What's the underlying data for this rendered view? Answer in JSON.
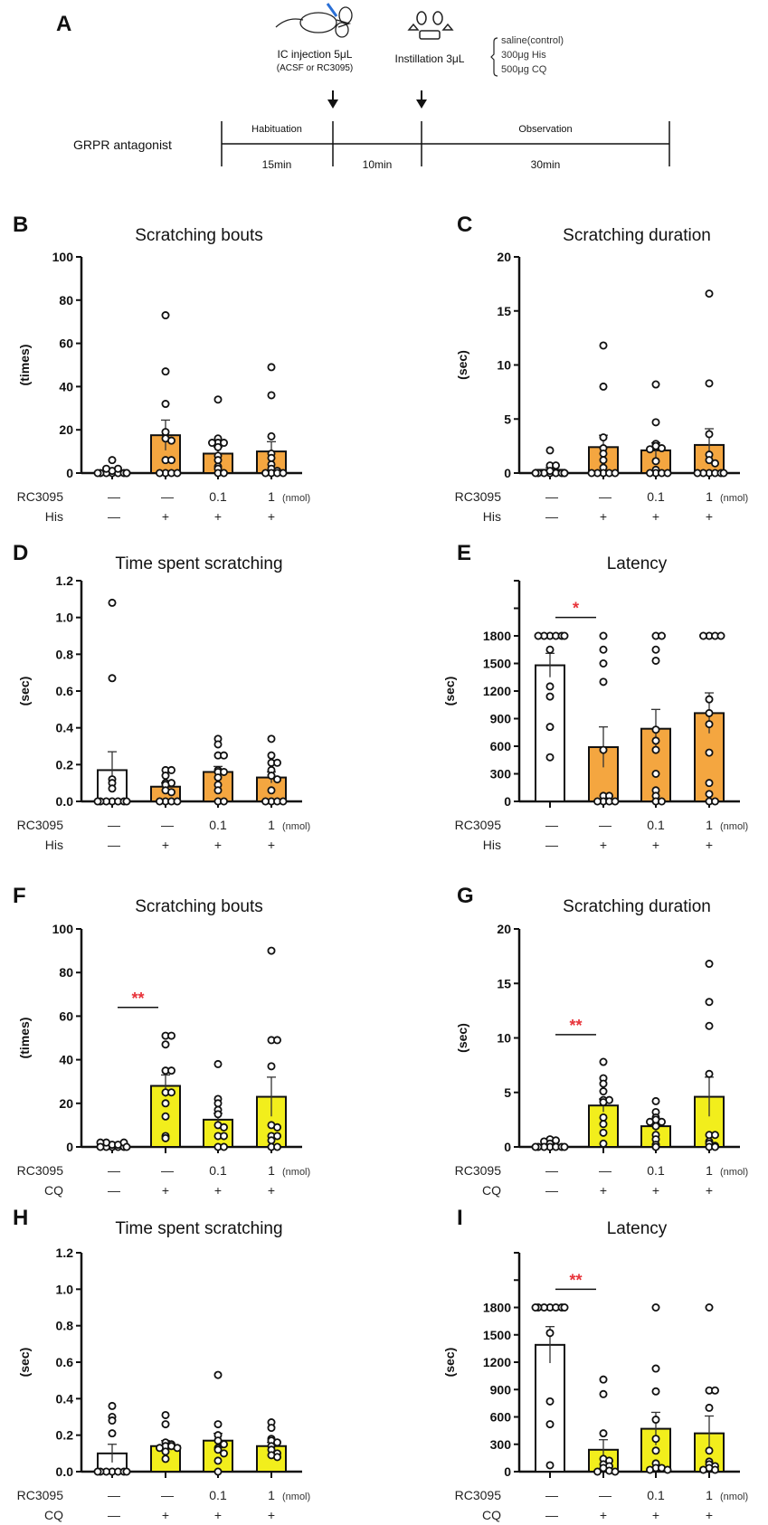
{
  "panel_a": {
    "letter": "A",
    "injection_label": "IC injection  5μL",
    "injection_sub": "(ACSF or RC3095)",
    "instillation_label": "Instillation  3μL",
    "stimuli": [
      "saline(control)",
      "300μg His",
      "500μg CQ"
    ],
    "protocol_label": "GRPR antagonist",
    "phases": [
      {
        "name": "Habituation",
        "duration": "15min"
      },
      {
        "name": "",
        "duration": "10min"
      },
      {
        "name": "Observation",
        "duration": "30min"
      }
    ]
  },
  "colors": {
    "his": "#F4A640",
    "cq": "#F2EE1C",
    "control": "#FFFFFF",
    "sig": "#E8333A",
    "ink": "#111111"
  },
  "chart_data": [
    {
      "panel": "B",
      "type": "bar",
      "title": "Scratching bouts",
      "ylabel": "(times)",
      "ylim": [
        0,
        100
      ],
      "yticks": [
        0,
        20,
        40,
        60,
        80,
        100
      ],
      "ytick_labels": [
        "0",
        "20",
        "40",
        "60",
        "80",
        "100"
      ],
      "unlabeled_ticks": [],
      "rows": [
        {
          "label": "RC3095",
          "values": [
            "—",
            "—",
            "0.1",
            "1"
          ],
          "unit": "(nmol)"
        },
        {
          "label": "His",
          "values": [
            "—",
            "+",
            "+",
            "+"
          ]
        }
      ],
      "fill": [
        "control",
        "his",
        "his",
        "his"
      ],
      "means": [
        1,
        17.5,
        9,
        10
      ],
      "sem": [
        0.5,
        7,
        3,
        4.5
      ],
      "points": [
        [
          0,
          0,
          0,
          0,
          0,
          0,
          0,
          1,
          2,
          2,
          6,
          0
        ],
        [
          73,
          47,
          32,
          19,
          16,
          15,
          6,
          6,
          0,
          0,
          0,
          0
        ],
        [
          34,
          16,
          14,
          14,
          14,
          12,
          8,
          6,
          3,
          2,
          0,
          0
        ],
        [
          49,
          36,
          17,
          9,
          7,
          4,
          2,
          1,
          0,
          0,
          0,
          0
        ]
      ],
      "significance": []
    },
    {
      "panel": "C",
      "type": "bar",
      "title": "Scratching duration",
      "ylabel": "(sec)",
      "ylim": [
        0,
        20
      ],
      "yticks": [
        0,
        5,
        10,
        15,
        20
      ],
      "ytick_labels": [
        "0",
        "5",
        "10",
        "15",
        "20"
      ],
      "unlabeled_ticks": [],
      "rows": [
        {
          "label": "RC3095",
          "values": [
            "—",
            "—",
            "0.1",
            "1"
          ],
          "unit": "(nmol)"
        },
        {
          "label": "His",
          "values": [
            "—",
            "+",
            "+",
            "+"
          ]
        }
      ],
      "fill": [
        "control",
        "his",
        "his",
        "his"
      ],
      "means": [
        0.3,
        2.4,
        2.1,
        2.6
      ],
      "sem": [
        0.2,
        1.1,
        0.7,
        1.5
      ],
      "points": [
        [
          2.1,
          0.7,
          0.7,
          0,
          0,
          0,
          0,
          0,
          0,
          0,
          0,
          0.2
        ],
        [
          11.8,
          8,
          3.3,
          2.3,
          1.8,
          1.2,
          0.5,
          0,
          0,
          0,
          0,
          0
        ],
        [
          8.2,
          4.7,
          2.7,
          2.5,
          2.3,
          2.2,
          1.1,
          0.3,
          0,
          0,
          0,
          0
        ],
        [
          16.6,
          8.3,
          3.6,
          1.7,
          1.2,
          0.9,
          0,
          0,
          0,
          0,
          0,
          0
        ]
      ],
      "significance": []
    },
    {
      "panel": "D",
      "type": "bar",
      "title": "Time spent scratching",
      "ylabel": "(sec)",
      "ylim": [
        0,
        1.2
      ],
      "yticks": [
        0,
        0.2,
        0.4,
        0.6,
        0.8,
        1.0,
        1.2
      ],
      "ytick_labels": [
        "0.0",
        "0.2",
        "0.4",
        "0.6",
        "0.8",
        "1.0",
        "1.2"
      ],
      "unlabeled_ticks": [],
      "rows": [
        {
          "label": "RC3095",
          "values": [
            "—",
            "—",
            "0.1",
            "1"
          ],
          "unit": "(nmol)"
        },
        {
          "label": "His",
          "values": [
            "—",
            "+",
            "+",
            "+"
          ]
        }
      ],
      "fill": [
        "control",
        "his",
        "his",
        "his"
      ],
      "means": [
        0.17,
        0.08,
        0.16,
        0.13
      ],
      "sem": [
        0.1,
        0.02,
        0.03,
        0.03
      ],
      "points": [
        [
          1.08,
          0.67,
          0.12,
          0.1,
          0.07,
          0,
          0,
          0,
          0,
          0,
          0,
          0
        ],
        [
          0.17,
          0.17,
          0.14,
          0.1,
          0.1,
          0.09,
          0.06,
          0.05,
          0,
          0,
          0,
          0
        ],
        [
          0.34,
          0.31,
          0.25,
          0.25,
          0.17,
          0.16,
          0.16,
          0.13,
          0.09,
          0.06,
          0,
          0
        ],
        [
          0.34,
          0.25,
          0.21,
          0.21,
          0.17,
          0.14,
          0.12,
          0.06,
          0,
          0,
          0,
          0
        ]
      ],
      "significance": []
    },
    {
      "panel": "E",
      "type": "bar",
      "title": "Latency",
      "ylabel": "(sec)",
      "ylim": [
        0,
        2400
      ],
      "yticks": [
        0,
        300,
        600,
        900,
        1200,
        1500,
        1800
      ],
      "ytick_labels": [
        "0",
        "300",
        "600",
        "900",
        "1200",
        "1500",
        "1800"
      ],
      "unlabeled_ticks": [
        2100,
        2400
      ],
      "rows": [
        {
          "label": "RC3095",
          "values": [
            "—",
            "—",
            "0.1",
            "1"
          ],
          "unit": "(nmol)"
        },
        {
          "label": "His",
          "values": [
            "—",
            "+",
            "+",
            "+"
          ]
        }
      ],
      "fill": [
        "control",
        "his",
        "his",
        "his"
      ],
      "means": [
        1480,
        590,
        790,
        960
      ],
      "sem": [
        130,
        220,
        210,
        220
      ],
      "points": [
        [
          1800,
          1800,
          1800,
          1800,
          1800,
          1800,
          1650,
          1250,
          1140,
          810,
          480
        ],
        [
          1800,
          1650,
          1500,
          1300,
          560,
          60,
          60,
          0,
          0,
          0,
          0
        ],
        [
          1800,
          1800,
          1650,
          1530,
          780,
          660,
          560,
          300,
          120,
          60,
          0,
          0
        ],
        [
          1800,
          1800,
          1800,
          1800,
          1110,
          960,
          840,
          530,
          200,
          80,
          0,
          0
        ]
      ],
      "significance": [
        {
          "from": 0,
          "to": 1,
          "y": 2000,
          "label": "*"
        }
      ]
    },
    {
      "panel": "F",
      "type": "bar",
      "title": "Scratching bouts",
      "ylabel": "(times)",
      "ylim": [
        0,
        100
      ],
      "yticks": [
        0,
        20,
        40,
        60,
        80,
        100
      ],
      "ytick_labels": [
        "0",
        "20",
        "40",
        "60",
        "80",
        "100"
      ],
      "unlabeled_ticks": [],
      "rows": [
        {
          "label": "RC3095",
          "values": [
            "—",
            "—",
            "0.1",
            "1"
          ],
          "unit": "(nmol)"
        },
        {
          "label": "CQ",
          "values": [
            "—",
            "+",
            "+",
            "+"
          ]
        }
      ],
      "fill": [
        "control",
        "cq",
        "cq",
        "cq"
      ],
      "means": [
        1,
        28,
        12.5,
        23
      ],
      "sem": [
        0.5,
        5,
        3,
        9
      ],
      "points": [
        [
          0,
          0,
          0,
          0,
          1,
          1,
          2,
          2,
          2,
          0,
          0
        ],
        [
          51,
          51,
          47,
          35,
          35,
          25,
          25,
          20,
          14,
          5,
          4
        ],
        [
          38,
          22,
          20,
          17,
          15,
          10,
          9,
          5,
          5,
          0,
          0
        ],
        [
          90,
          49,
          49,
          37,
          10,
          9,
          5,
          5,
          3,
          0,
          0
        ]
      ],
      "significance": [
        {
          "from": 0,
          "to": 1,
          "y": 64,
          "label": "**"
        }
      ]
    },
    {
      "panel": "G",
      "type": "bar",
      "title": "Scratching duration",
      "ylabel": "(sec)",
      "ylim": [
        0,
        20
      ],
      "yticks": [
        0,
        5,
        10,
        15,
        20
      ],
      "ytick_labels": [
        "0",
        "5",
        "10",
        "15",
        "20"
      ],
      "unlabeled_ticks": [],
      "rows": [
        {
          "label": "RC3095",
          "values": [
            "—",
            "—",
            "0.1",
            "1"
          ],
          "unit": "(nmol)"
        },
        {
          "label": "CQ",
          "values": [
            "—",
            "+",
            "+",
            "+"
          ]
        }
      ],
      "fill": [
        "control",
        "cq",
        "cq",
        "cq"
      ],
      "means": [
        0.2,
        3.8,
        1.9,
        4.6
      ],
      "sem": [
        0.1,
        0.6,
        0.4,
        1.8
      ],
      "points": [
        [
          0.7,
          0.6,
          0.5,
          0.3,
          0,
          0,
          0,
          0,
          0,
          0,
          0
        ],
        [
          7.8,
          6.3,
          5.8,
          5.1,
          4.3,
          4.3,
          4.1,
          2.7,
          2.1,
          1.3,
          0.3
        ],
        [
          4.2,
          3.2,
          2.7,
          2.5,
          2.3,
          2.3,
          1.9,
          1.1,
          0.7,
          0.2,
          0
        ],
        [
          16.8,
          13.3,
          11.1,
          6.7,
          1.1,
          1.1,
          0.5,
          0.3,
          0.1,
          0,
          0
        ]
      ],
      "significance": [
        {
          "from": 0,
          "to": 1,
          "y": 10.3,
          "label": "**"
        }
      ]
    },
    {
      "panel": "H",
      "type": "bar",
      "title": "Time spent scratching",
      "ylabel": "(sec)",
      "ylim": [
        0,
        1.2
      ],
      "yticks": [
        0,
        0.2,
        0.4,
        0.6,
        0.8,
        1.0,
        1.2
      ],
      "ytick_labels": [
        "0.0",
        "0.2",
        "0.4",
        "0.6",
        "0.8",
        "1.0",
        "1.2"
      ],
      "unlabeled_ticks": [],
      "rows": [
        {
          "label": "RC3095",
          "values": [
            "—",
            "—",
            "0.1",
            "1"
          ],
          "unit": "(nmol)"
        },
        {
          "label": "CQ",
          "values": [
            "—",
            "+",
            "+",
            "+"
          ]
        }
      ],
      "fill": [
        "control",
        "cq",
        "cq",
        "cq"
      ],
      "means": [
        0.1,
        0.14,
        0.17,
        0.14
      ],
      "sem": [
        0.05,
        0.03,
        0.04,
        0.02
      ],
      "points": [
        [
          0.36,
          0.3,
          0.28,
          0.21,
          0,
          0,
          0,
          0,
          0,
          0,
          0
        ],
        [
          0.31,
          0.26,
          0.16,
          0.15,
          0.14,
          0.14,
          0.13,
          0.13,
          0.11,
          0.07
        ],
        [
          0.53,
          0.26,
          0.2,
          0.17,
          0.15,
          0.13,
          0.12,
          0.1,
          0.06,
          0
        ],
        [
          0.27,
          0.24,
          0.18,
          0.17,
          0.16,
          0.14,
          0.12,
          0.1,
          0.09,
          0.08
        ]
      ],
      "significance": []
    },
    {
      "panel": "I",
      "type": "bar",
      "title": "Latency",
      "ylabel": "(sec)",
      "ylim": [
        0,
        2400
      ],
      "yticks": [
        0,
        300,
        600,
        900,
        1200,
        1500,
        1800
      ],
      "ytick_labels": [
        "0",
        "300",
        "600",
        "900",
        "1200",
        "1500",
        "1800"
      ],
      "unlabeled_ticks": [
        2100,
        2400
      ],
      "rows": [
        {
          "label": "RC3095",
          "values": [
            "—",
            "—",
            "0.1",
            "1"
          ],
          "unit": "(nmol)"
        },
        {
          "label": "CQ",
          "values": [
            "—",
            "+",
            "+",
            "+"
          ]
        }
      ],
      "fill": [
        "control",
        "cq",
        "cq",
        "cq"
      ],
      "means": [
        1390,
        240,
        470,
        420
      ],
      "sem": [
        200,
        110,
        180,
        190
      ],
      "points": [
        [
          1800,
          1800,
          1800,
          1800,
          1800,
          1800,
          1800,
          1520,
          770,
          520,
          70
        ],
        [
          1010,
          850,
          420,
          140,
          120,
          80,
          60,
          40,
          10,
          0,
          0
        ],
        [
          1800,
          1130,
          880,
          570,
          360,
          230,
          90,
          40,
          40,
          20,
          20
        ],
        [
          1800,
          890,
          890,
          700,
          230,
          110,
          80,
          60,
          40,
          20,
          20
        ]
      ],
      "significance": [
        {
          "from": 0,
          "to": 1,
          "y": 2000,
          "label": "**"
        }
      ]
    }
  ]
}
